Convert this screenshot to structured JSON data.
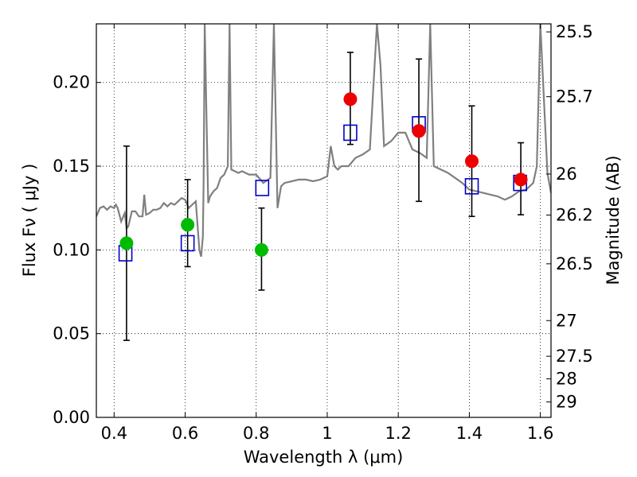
{
  "chart_data": {
    "type": "scatter",
    "xlabel": "Wavelength  λ (μm)",
    "ylabel": "Flux  Fν  ( μJy )",
    "y2label": "Magnitude (AB)",
    "xlim": [
      0.35,
      1.63
    ],
    "ylim": [
      0.0,
      0.235
    ],
    "grid": true,
    "x_ticks": [
      0.4,
      0.6,
      0.8,
      1.0,
      1.2,
      1.4,
      1.6
    ],
    "x_tick_labels": [
      "0.4",
      "0.6",
      "0.8",
      "1",
      "1.2",
      "1.4",
      "1.6"
    ],
    "y_ticks": [
      0.0,
      0.05,
      0.1,
      0.15,
      0.2
    ],
    "y_tick_labels": [
      "0.00",
      "0.05",
      "0.10",
      "0.15",
      "0.20"
    ],
    "y2_ticks": [
      {
        "mag": "25.5",
        "flux": 0.2302
      },
      {
        "mag": "25.7",
        "flux": 0.1915
      },
      {
        "mag": "26",
        "flux": 0.1453
      },
      {
        "mag": "26.2",
        "flux": 0.1208
      },
      {
        "mag": "26.5",
        "flux": 0.0917
      },
      {
        "mag": "27",
        "flux": 0.0578
      },
      {
        "mag": "27.5",
        "flux": 0.0365
      },
      {
        "mag": "28",
        "flux": 0.023
      },
      {
        "mag": "29",
        "flux": 0.0092
      }
    ],
    "series": [
      {
        "marker": "line",
        "color": "#808080",
        "x": [
          0.35,
          0.36,
          0.37,
          0.38,
          0.39,
          0.4,
          0.405,
          0.41,
          0.42,
          0.43,
          0.435,
          0.44,
          0.45,
          0.46,
          0.47,
          0.48,
          0.485,
          0.49,
          0.5,
          0.51,
          0.52,
          0.53,
          0.54,
          0.55,
          0.56,
          0.57,
          0.58,
          0.59,
          0.6,
          0.61,
          0.62,
          0.63,
          0.64,
          0.645,
          0.65,
          0.652,
          0.655,
          0.66,
          0.665,
          0.67,
          0.68,
          0.69,
          0.7,
          0.71,
          0.72,
          0.725,
          0.73,
          0.74,
          0.75,
          0.76,
          0.78,
          0.8,
          0.82,
          0.84,
          0.85,
          0.86,
          0.87,
          0.88,
          0.9,
          0.92,
          0.94,
          0.96,
          0.98,
          1.0,
          1.01,
          1.02,
          1.03,
          1.04,
          1.06,
          1.08,
          1.1,
          1.12,
          1.14,
          1.15,
          1.16,
          1.18,
          1.2,
          1.22,
          1.24,
          1.26,
          1.28,
          1.29,
          1.3,
          1.32,
          1.34,
          1.36,
          1.38,
          1.4,
          1.42,
          1.44,
          1.46,
          1.48,
          1.5,
          1.52,
          1.54,
          1.56,
          1.58,
          1.59,
          1.6,
          1.62,
          1.63
        ],
        "y": [
          0.12,
          0.125,
          0.126,
          0.124,
          0.126,
          0.125,
          0.127,
          0.125,
          0.117,
          0.122,
          0.113,
          0.114,
          0.123,
          0.123,
          0.12,
          0.12,
          0.133,
          0.121,
          0.122,
          0.124,
          0.124,
          0.125,
          0.128,
          0.126,
          0.128,
          0.127,
          0.129,
          0.131,
          0.13,
          0.125,
          0.127,
          0.129,
          0.1,
          0.096,
          0.108,
          0.14,
          0.235,
          0.18,
          0.128,
          0.132,
          0.135,
          0.137,
          0.143,
          0.145,
          0.15,
          0.235,
          0.148,
          0.147,
          0.146,
          0.147,
          0.145,
          0.145,
          0.14,
          0.143,
          0.235,
          0.125,
          0.138,
          0.14,
          0.141,
          0.142,
          0.142,
          0.141,
          0.142,
          0.144,
          0.162,
          0.15,
          0.148,
          0.15,
          0.15,
          0.155,
          0.157,
          0.16,
          0.235,
          0.21,
          0.162,
          0.165,
          0.17,
          0.17,
          0.16,
          0.158,
          0.155,
          0.235,
          0.15,
          0.148,
          0.146,
          0.143,
          0.14,
          0.136,
          0.135,
          0.134,
          0.133,
          0.132,
          0.13,
          0.132,
          0.135,
          0.136,
          0.14,
          0.15,
          0.235,
          0.146,
          0.134
        ]
      },
      {
        "marker": "open-square",
        "color": "#0000cc",
        "x": [
          0.432,
          0.607,
          0.817,
          1.065,
          1.258,
          1.407,
          1.543
        ],
        "y": [
          0.098,
          0.104,
          0.137,
          0.17,
          0.175,
          0.138,
          0.14
        ]
      },
      {
        "marker": "circle",
        "color": "#00bb00",
        "x": [
          0.435,
          0.607,
          0.815
        ],
        "y": [
          0.104,
          0.115,
          0.1
        ],
        "yerr_low": [
          0.058,
          0.025,
          0.024
        ],
        "yerr_high": [
          0.058,
          0.027,
          0.025
        ]
      },
      {
        "marker": "circle",
        "color": "#ee0000",
        "x": [
          1.065,
          1.258,
          1.407,
          1.545
        ],
        "y": [
          0.19,
          0.171,
          0.153,
          0.142
        ],
        "yerr_low": [
          0.027,
          0.042,
          0.033,
          0.021
        ],
        "yerr_high": [
          0.028,
          0.043,
          0.033,
          0.022
        ]
      }
    ]
  }
}
